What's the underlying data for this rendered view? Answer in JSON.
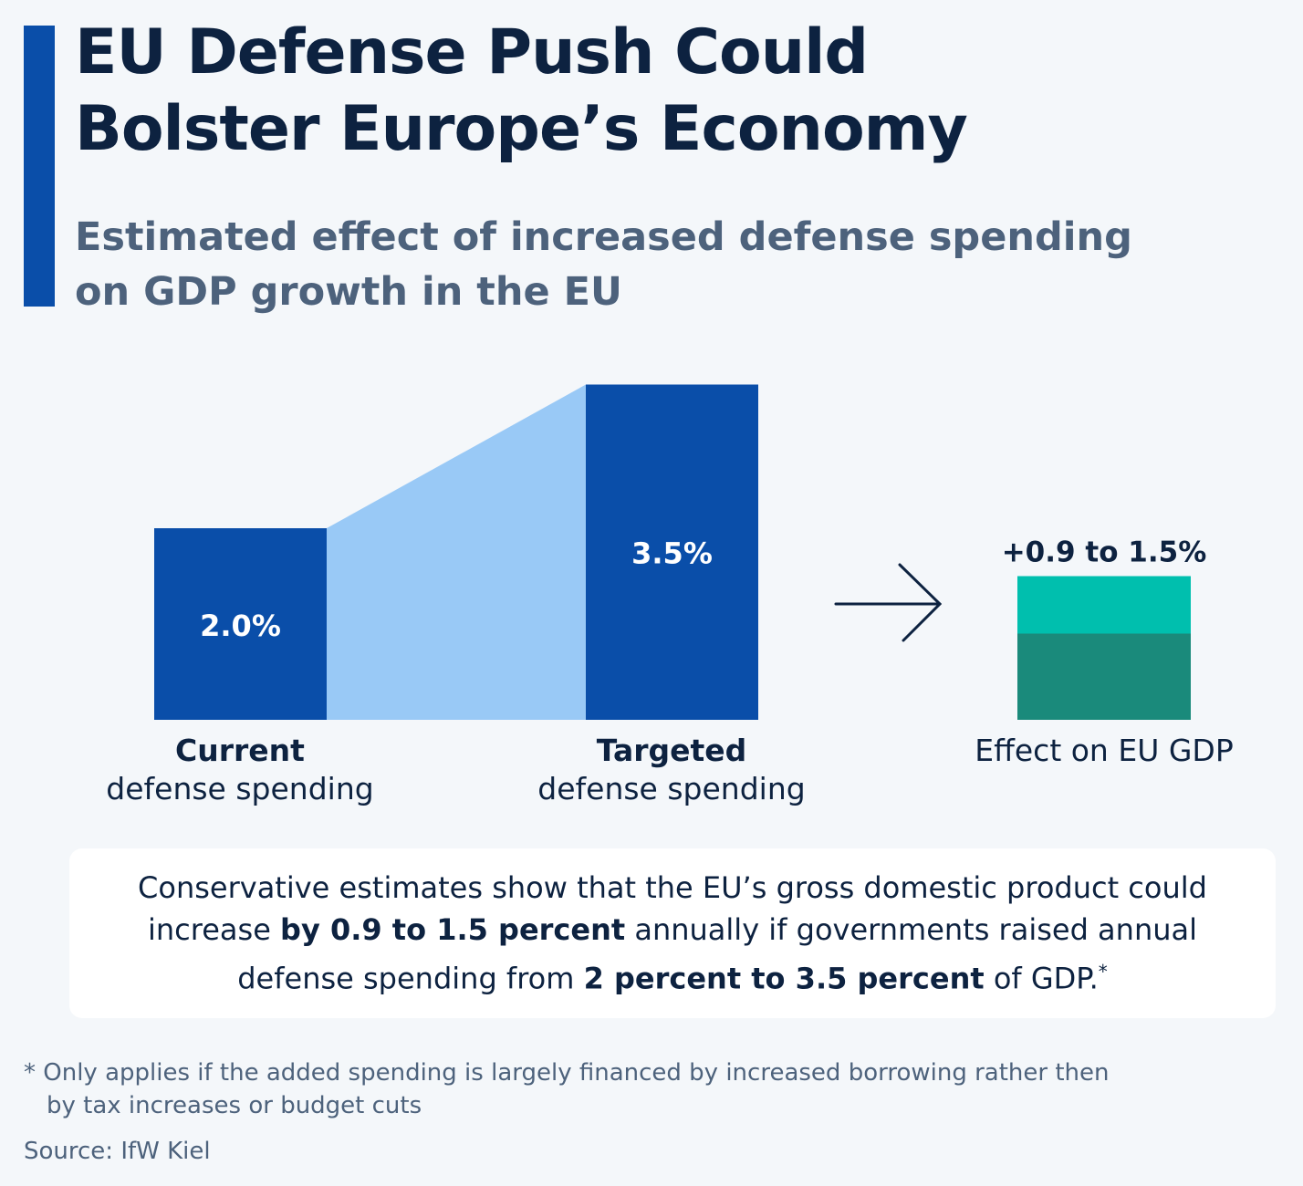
{
  "title_lines": [
    "EU Defense Push Could",
    "Bolster Europe’s Economy"
  ],
  "subtitle_lines": [
    "Estimated effect of increased defense spending",
    "on GDP growth in the EU"
  ],
  "colors": {
    "bar": "#0a4ea9",
    "connector": "#99c9f6",
    "effect_low": "#1a8a7b",
    "effect_high": "#00bfae",
    "arrow": "#0d2240"
  },
  "chart_data": {
    "type": "bar",
    "title": "Estimated effect of increased defense spending on GDP growth in the EU",
    "unit": "% of GDP",
    "categories": [
      "Current defense spending",
      "Targeted defense spending"
    ],
    "values": [
      2.0,
      3.5
    ],
    "data_labels": [
      "2.0%",
      "3.5%"
    ],
    "category_labels": [
      {
        "bold": "Current",
        "plain": "defense spending"
      },
      {
        "bold": "Targeted",
        "plain": "defense spending"
      }
    ],
    "effect": {
      "label": "Effect on EU GDP",
      "value_label": "+0.9 to 1.5%",
      "low": 0.9,
      "high": 1.5
    }
  },
  "note": {
    "line1": "Conservative estimates show that the EU’s gross domestic product could",
    "line2_pre": "increase ",
    "line2_bold": "by 0.9 to 1.5 percent",
    "line2_post": " annually if governments raised annual",
    "line3_pre": "defense spending from ",
    "line3_bold": "2 percent to 3.5 percent",
    "line3_post": " of GDP.",
    "asterisk": "*"
  },
  "footnote_lines": [
    "* Only applies if the added spending is largely financed by increased borrowing rather then",
    "by tax increases or budget cuts"
  ],
  "source": "Source: IfW Kiel"
}
